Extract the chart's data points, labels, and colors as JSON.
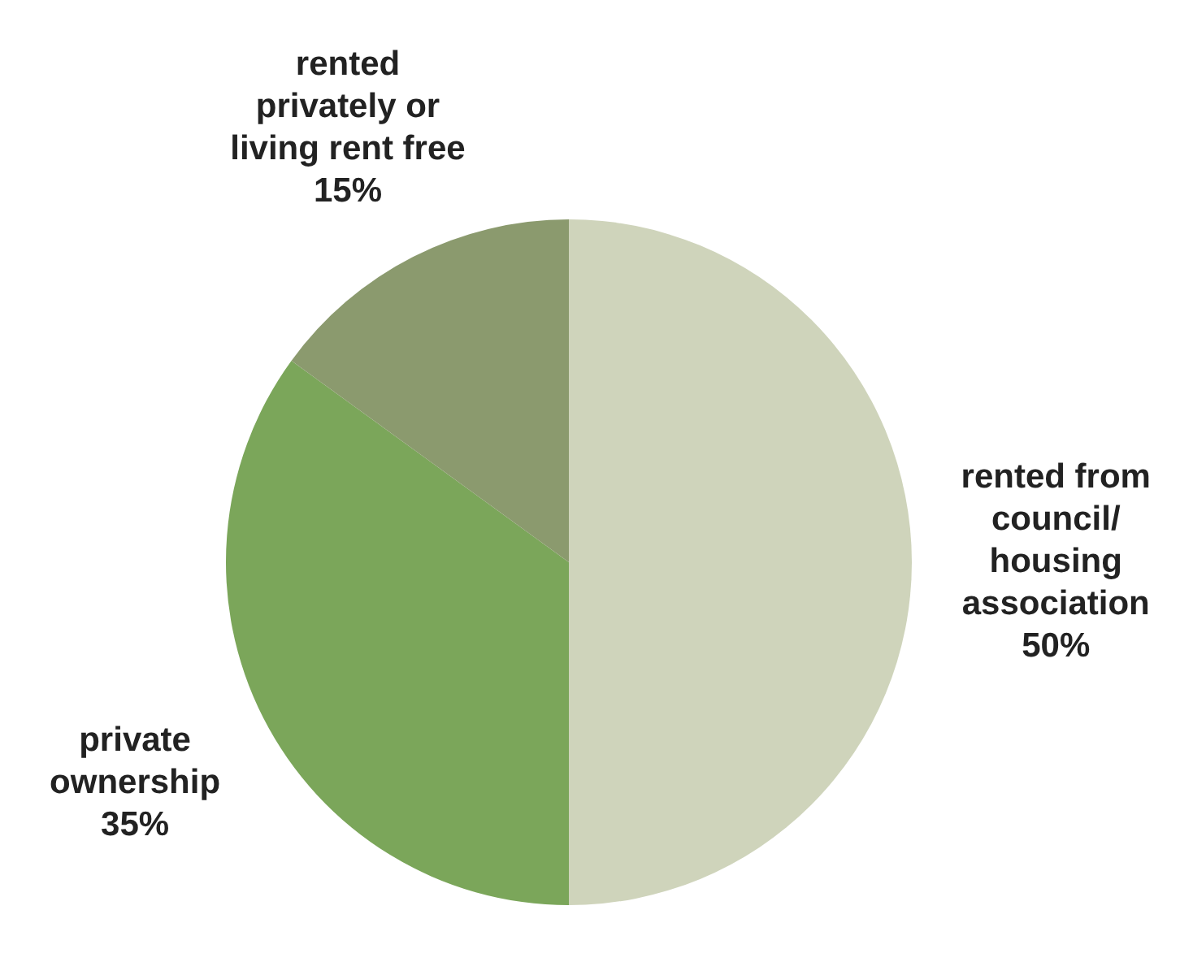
{
  "chart_data": {
    "type": "pie",
    "categories": [
      "rented from\ncouncil/\nhousing\nassociation",
      "private\nownership",
      "rented\nprivately or\nliving rent free"
    ],
    "values": [
      50,
      35,
      15
    ],
    "colors": [
      "#cfd4bb",
      "#7ba65a",
      "#8b9a6e"
    ],
    "value_labels": [
      "50%",
      "35%",
      "15%"
    ]
  }
}
